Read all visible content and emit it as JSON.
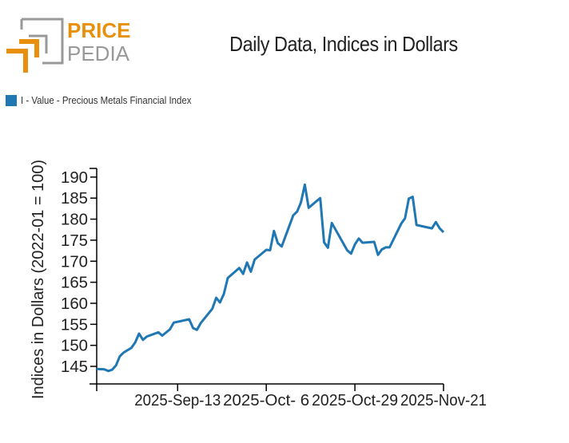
{
  "logo": {
    "text_top": "PRICE",
    "text_bottom": "PEDIA",
    "colors": {
      "orange": "#e8900c",
      "gray": "#999999"
    }
  },
  "chart_data": {
    "type": "line",
    "title": "Daily Data, Indices in Dollars",
    "xlabel": "",
    "ylabel": "Indices in Dollars (2022-01 = 100)",
    "ylim": [
      140,
      191
    ],
    "xlim": [
      "2025-08-23",
      "2025-11-21"
    ],
    "yticks": [
      145,
      150,
      155,
      160,
      165,
      170,
      175,
      180,
      185,
      190
    ],
    "xticks": [
      {
        "date": "2025-09-13",
        "label": "2025-Sep-13"
      },
      {
        "date": "2025-10-06",
        "label": "2025-Oct- 6"
      },
      {
        "date": "2025-10-29",
        "label": "2025-Oct-29"
      },
      {
        "date": "2025-11-21",
        "label": "2025-Nov-21"
      }
    ],
    "grid": false,
    "legend_position": "top-left",
    "series": [
      {
        "name": "I - Value - Precious Metals Financial Index",
        "color": "#1f77b4",
        "x": [
          "2025-08-23",
          "2025-08-25",
          "2025-08-26",
          "2025-08-27",
          "2025-08-28",
          "2025-08-29",
          "2025-08-30",
          "2025-09-01",
          "2025-09-02",
          "2025-09-03",
          "2025-09-04",
          "2025-09-05",
          "2025-09-08",
          "2025-09-09",
          "2025-09-11",
          "2025-09-12",
          "2025-09-16",
          "2025-09-17",
          "2025-09-18",
          "2025-09-19",
          "2025-09-22",
          "2025-09-23",
          "2025-09-24",
          "2025-09-25",
          "2025-09-26",
          "2025-09-29",
          "2025-09-30",
          "2025-10-01",
          "2025-10-02",
          "2025-10-03",
          "2025-10-06",
          "2025-10-07",
          "2025-10-08",
          "2025-10-09",
          "2025-10-10",
          "2025-10-13",
          "2025-10-14",
          "2025-10-15",
          "2025-10-16",
          "2025-10-17",
          "2025-10-20",
          "2025-10-21",
          "2025-10-22",
          "2025-10-23",
          "2025-10-27",
          "2025-10-28",
          "2025-10-29",
          "2025-10-30",
          "2025-10-31",
          "2025-11-03",
          "2025-11-04",
          "2025-11-05",
          "2025-11-06",
          "2025-11-07",
          "2025-11-10",
          "2025-11-11",
          "2025-11-12",
          "2025-11-13",
          "2025-11-14",
          "2025-11-18",
          "2025-11-19",
          "2025-11-20",
          "2025-11-21"
        ],
        "values": [
          144.4,
          144.3,
          143.9,
          144.2,
          145.2,
          147.4,
          148.3,
          149.4,
          150.7,
          152.8,
          151.3,
          152.1,
          153.1,
          152.3,
          153.8,
          155.4,
          156.2,
          154.1,
          153.7,
          155.3,
          158.7,
          161.3,
          160.2,
          162.2,
          166.0,
          168.4,
          167.0,
          169.7,
          167.5,
          170.4,
          172.7,
          172.6,
          177.2,
          174.3,
          173.5,
          180.9,
          181.8,
          184.0,
          188.2,
          182.7,
          185.0,
          174.5,
          173.2,
          179.1,
          172.6,
          171.8,
          174.0,
          175.4,
          174.4,
          174.6,
          171.5,
          172.8,
          173.3,
          173.3,
          178.9,
          180.2,
          184.9,
          185.3,
          178.6,
          177.8,
          179.3,
          177.8,
          176.9
        ]
      }
    ]
  }
}
